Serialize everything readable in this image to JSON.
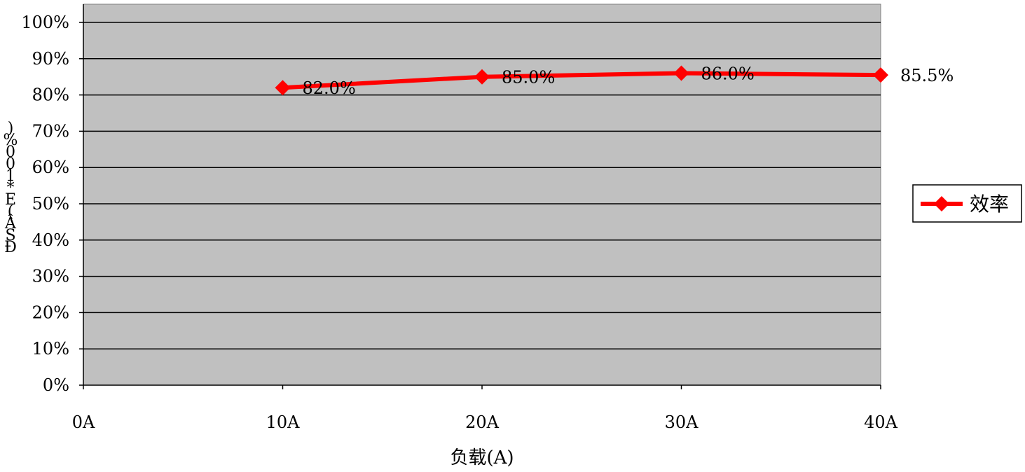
{
  "chart_data": {
    "type": "line",
    "title": "",
    "xlabel": "负载(A)",
    "ylabel_glyphs": [
      ")",
      "%",
      "0",
      "0",
      "1",
      "*",
      "E",
      "(",
      "Â",
      "S",
      "Ð"
    ],
    "categories": [
      "0A",
      "10A",
      "20A",
      "30A",
      "40A"
    ],
    "yticks": [
      "0%",
      "10%",
      "20%",
      "30%",
      "40%",
      "50%",
      "60%",
      "70%",
      "80%",
      "90%",
      "100%"
    ],
    "ylim": [
      0,
      1
    ],
    "series": [
      {
        "name": "效率",
        "x": [
          "10A",
          "20A",
          "30A",
          "40A"
        ],
        "values": [
          0.82,
          0.85,
          0.86,
          0.855
        ],
        "labels": [
          "82.0%",
          "85.0%",
          "86.0%",
          "85.5%"
        ],
        "color": "#ff0000",
        "marker": "diamond"
      }
    ],
    "grid": true,
    "plot_background": "#c0c0c0",
    "legend_position": "right"
  }
}
